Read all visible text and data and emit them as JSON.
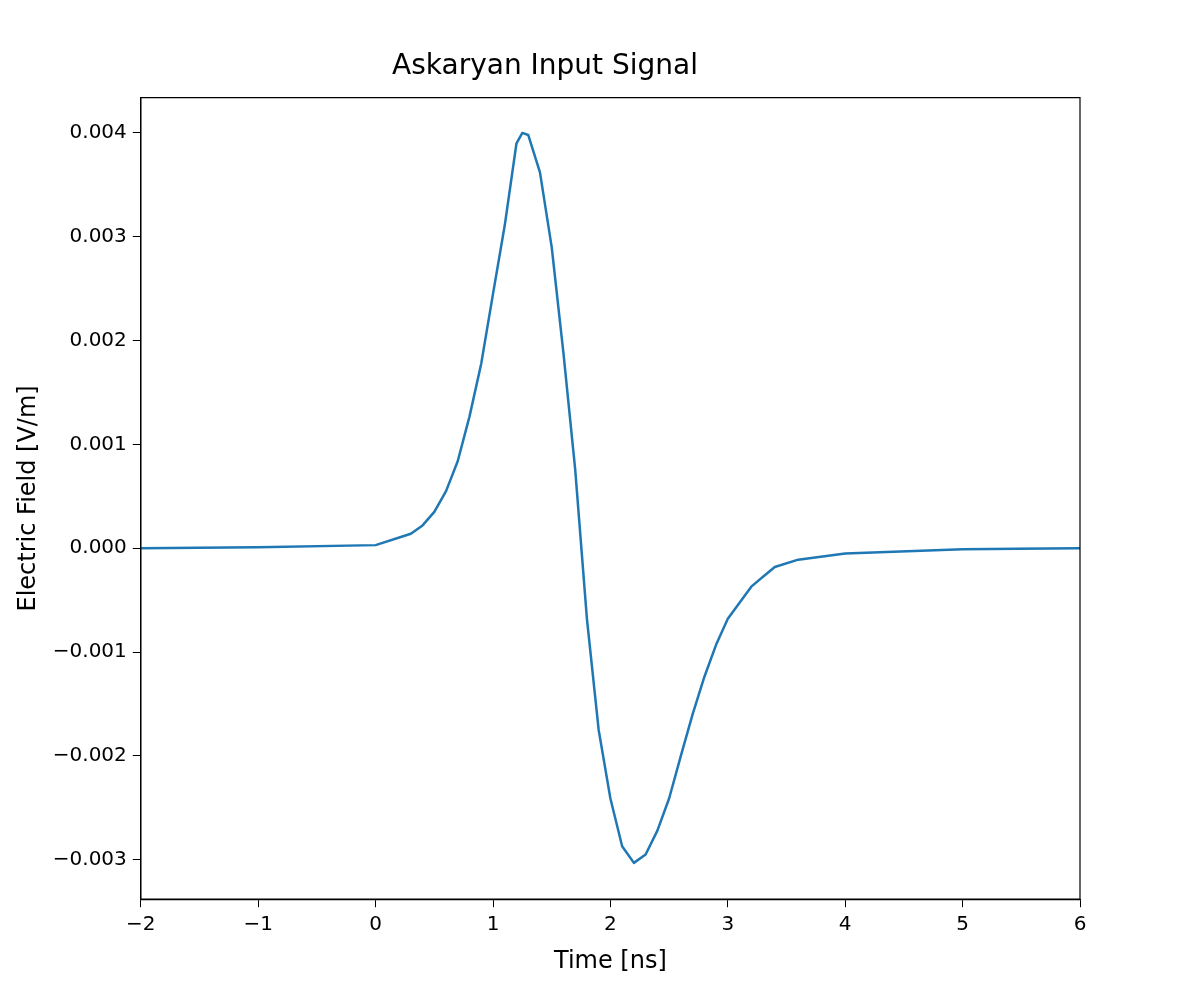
{
  "chart_data": {
    "type": "line",
    "title": "Askaryan Input Signal",
    "xlabel": "Time [ns]",
    "ylabel": "Electric Field [V/m]",
    "x": [
      -2,
      -1,
      0,
      0.3,
      0.4,
      0.5,
      0.6,
      0.7,
      0.8,
      0.9,
      1.0,
      1.1,
      1.2,
      1.25,
      1.3,
      1.4,
      1.5,
      1.6,
      1.7,
      1.8,
      1.9,
      2.0,
      2.1,
      2.2,
      2.3,
      2.4,
      2.5,
      2.6,
      2.7,
      2.8,
      2.9,
      3.0,
      3.2,
      3.4,
      3.6,
      4.0,
      5.0,
      6.0
    ],
    "series": [
      {
        "color": "#1f77b4",
        "values": [
          0,
          1e-05,
          3e-05,
          0.00014,
          0.00022,
          0.00035,
          0.00055,
          0.00084,
          0.00127,
          0.00178,
          0.00245,
          0.00311,
          0.0039,
          0.004,
          0.00398,
          0.00362,
          0.0029,
          0.00188,
          0.00076,
          -0.00068,
          -0.00175,
          -0.00241,
          -0.00287,
          -0.00303,
          -0.00295,
          -0.00272,
          -0.00241,
          -0.002,
          -0.0016,
          -0.00124,
          -0.00093,
          -0.00068,
          -0.00037,
          -0.00018,
          -0.00011,
          -5e-05,
          -1e-05,
          0
        ]
      }
    ],
    "xlim": [
      -2,
      6
    ],
    "ylim": [
      -0.00338,
      0.00434
    ],
    "xticks": [
      {
        "value": -2,
        "label": "−2"
      },
      {
        "value": -1,
        "label": "−1"
      },
      0,
      1,
      2,
      3,
      4,
      5,
      6
    ],
    "yticks": [
      {
        "value": -0.003,
        "label": "−0.003"
      },
      {
        "value": -0.002,
        "label": "−0.002"
      },
      {
        "value": -0.001,
        "label": "−0.001"
      },
      {
        "value": 0,
        "label": "0.000"
      },
      {
        "value": 0.001,
        "label": "0.001"
      },
      {
        "value": 0.002,
        "label": "0.002"
      },
      {
        "value": 0.003,
        "label": "0.003"
      },
      {
        "value": 0.004,
        "label": "0.004"
      }
    ],
    "grid": false,
    "legend": false,
    "marker": "none",
    "line_style": "solid"
  }
}
